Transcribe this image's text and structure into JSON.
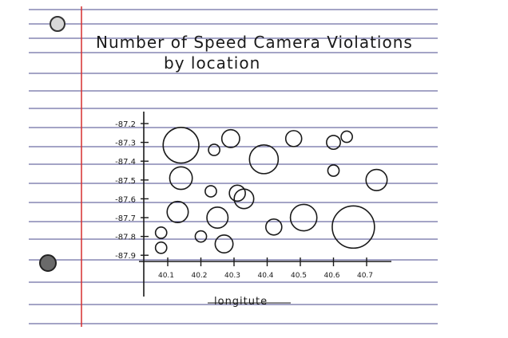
{
  "page": {
    "rule_color": "#4a4a8c",
    "margin_color": "#d62f2f",
    "ink_color": "#1a1a1a"
  },
  "chart_data": {
    "type": "scatter",
    "title": "Number of Speed Camera Violations",
    "subtitle": "by location",
    "xlabel": "longitute",
    "ylabel": "",
    "x_ticks": [
      "40.1",
      "40.2",
      "40.3",
      "40.4",
      "40.5",
      "40.6",
      "40.7"
    ],
    "y_ticks": [
      "-87.2",
      "-87.3",
      "-87.4",
      "-87.5",
      "-87.6",
      "-87.7",
      "-87.8",
      "-87.9"
    ],
    "xlim": [
      40.03,
      40.77
    ],
    "ylim": [
      -87.93,
      -87.17
    ],
    "grid": false,
    "legend": "none",
    "size_scale": "bubble radius proportional to number of violations",
    "points": [
      {
        "x": 40.14,
        "y": -87.315,
        "size": 20
      },
      {
        "x": 40.14,
        "y": -87.49,
        "size": 8
      },
      {
        "x": 40.13,
        "y": -87.67,
        "size": 7
      },
      {
        "x": 40.08,
        "y": -87.78,
        "size": 2
      },
      {
        "x": 40.08,
        "y": -87.86,
        "size": 2
      },
      {
        "x": 40.2,
        "y": -87.8,
        "size": 2
      },
      {
        "x": 40.25,
        "y": -87.7,
        "size": 7
      },
      {
        "x": 40.24,
        "y": -87.34,
        "size": 2
      },
      {
        "x": 40.23,
        "y": -87.56,
        "size": 2
      },
      {
        "x": 40.27,
        "y": -87.84,
        "size": 5
      },
      {
        "x": 40.29,
        "y": -87.28,
        "size": 5
      },
      {
        "x": 40.31,
        "y": -87.57,
        "size": 4
      },
      {
        "x": 40.33,
        "y": -87.6,
        "size": 6
      },
      {
        "x": 40.39,
        "y": -87.39,
        "size": 13
      },
      {
        "x": 40.42,
        "y": -87.75,
        "size": 4
      },
      {
        "x": 40.48,
        "y": -87.28,
        "size": 4
      },
      {
        "x": 40.51,
        "y": -87.7,
        "size": 11
      },
      {
        "x": 40.6,
        "y": -87.3,
        "size": 3
      },
      {
        "x": 40.64,
        "y": -87.27,
        "size": 2
      },
      {
        "x": 40.6,
        "y": -87.45,
        "size": 2
      },
      {
        "x": 40.66,
        "y": -87.75,
        "size": 28
      },
      {
        "x": 40.73,
        "y": -87.5,
        "size": 7
      }
    ]
  }
}
